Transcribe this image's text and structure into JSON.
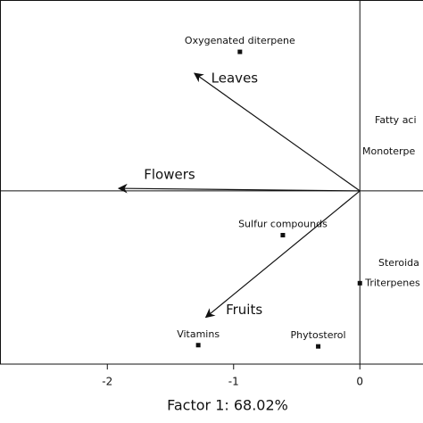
{
  "chart_data": {
    "type": "biplot",
    "xlabel": "Factor 1: 68.02%",
    "xlim": [
      -2.85,
      0.5
    ],
    "ylim": [
      -1.37,
      1.51
    ],
    "xticks": [
      -2,
      -1,
      0
    ],
    "points": {
      "labels": [
        "Oxygenated diterpene",
        "Sulfur compounds",
        "Triterpenes",
        "Vitamins",
        "Phytosterol"
      ],
      "x": [
        -0.95,
        -0.61,
        0.0,
        -1.28,
        -0.33
      ],
      "y": [
        1.1,
        -0.35,
        -0.73,
        -1.22,
        -1.23
      ]
    },
    "vectors": {
      "labels": [
        "Leaves",
        "Flowers",
        "Fruits"
      ],
      "x": [
        -1.31,
        -1.91,
        -1.22
      ],
      "y": [
        0.93,
        0.02,
        -1.0
      ]
    },
    "annotations": [
      "Fatty aci",
      "Monoterpe",
      "Steroida"
    ]
  }
}
